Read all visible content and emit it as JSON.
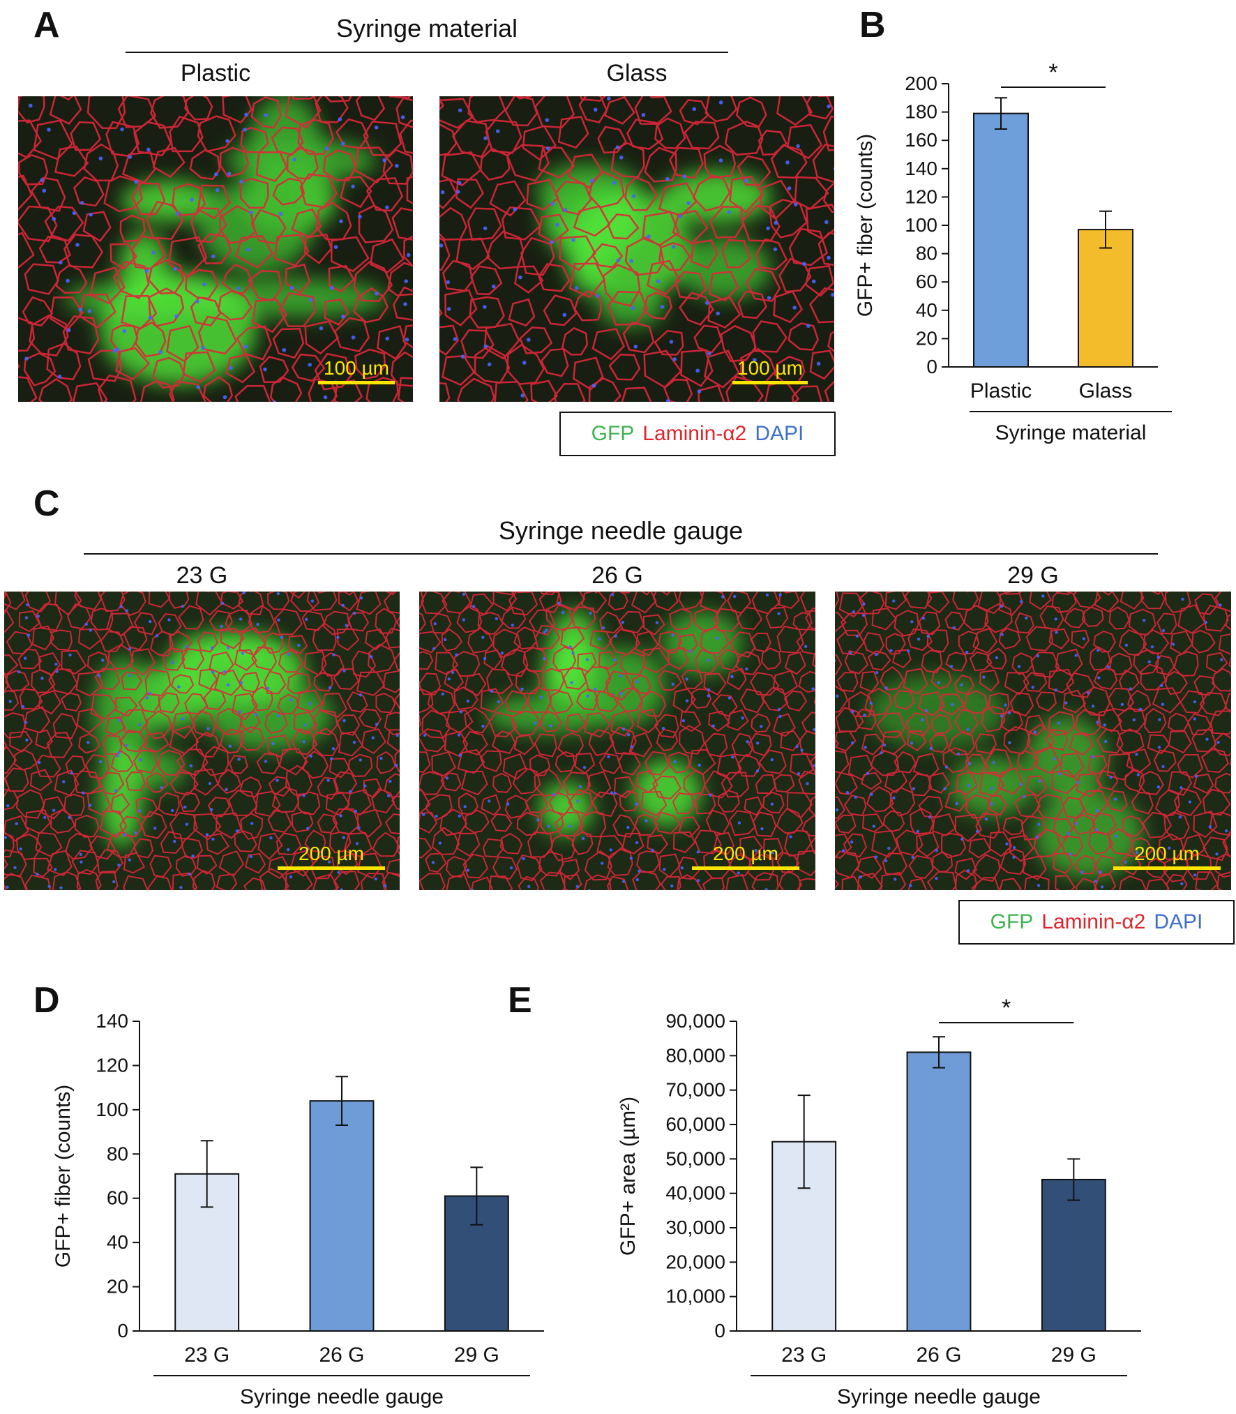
{
  "panels": {
    "A": {
      "letter": "A",
      "title": "Syringe material",
      "images": [
        {
          "label": "Plastic",
          "scalebar": "100 µm"
        },
        {
          "label": "Glass",
          "scalebar": "100 µm"
        }
      ],
      "legend": {
        "gfp": "GFP",
        "laminin": "Laminin-α2",
        "dapi": "DAPI"
      }
    },
    "B": {
      "letter": "B"
    },
    "C": {
      "letter": "C",
      "title": "Syringe needle gauge",
      "images": [
        {
          "label": "23 G",
          "scalebar": "200 µm"
        },
        {
          "label": "26 G",
          "scalebar": "200 µm"
        },
        {
          "label": "29 G",
          "scalebar": "200 µm"
        }
      ],
      "legend": {
        "gfp": "GFP",
        "laminin": "Laminin-α2",
        "dapi": "DAPI"
      }
    },
    "D": {
      "letter": "D"
    },
    "E": {
      "letter": "E"
    }
  },
  "colors": {
    "gfp_text": "#3fb34f",
    "laminin_text": "#e0242b",
    "dapi_text": "#3d6fc9",
    "scalebar": "#ffe600",
    "plastic_bar": "#6f9fdb",
    "glass_bar": "#f2bc2b",
    "g23_bar": "#dfe7f4",
    "g26_bar": "#6f9bd6",
    "g29_bar": "#324f78"
  },
  "chart_data": [
    {
      "panel": "B",
      "type": "bar",
      "categories": [
        "Plastic",
        "Glass"
      ],
      "values": [
        179,
        97
      ],
      "errors": [
        11,
        13
      ],
      "colors": [
        "#6f9fdb",
        "#f2bc2b"
      ],
      "ylabel": "GFP+ fiber (counts)",
      "xlabel": "Syringe material",
      "ylim": [
        0,
        200
      ],
      "yticks": [
        "0",
        "20",
        "40",
        "60",
        "80",
        "100",
        "120",
        "140",
        "160",
        "180",
        "200"
      ],
      "significance": {
        "from": 0,
        "to": 1,
        "label": "*"
      }
    },
    {
      "panel": "D",
      "type": "bar",
      "categories": [
        "23 G",
        "26 G",
        "29 G"
      ],
      "values": [
        71,
        104,
        61
      ],
      "errors": [
        15,
        11,
        13
      ],
      "colors": [
        "#dfe7f4",
        "#6f9bd6",
        "#324f78"
      ],
      "ylabel": "GFP+ fiber (counts)",
      "xlabel": "Syringe needle gauge",
      "ylim": [
        0,
        140
      ],
      "yticks": [
        "0",
        "20",
        "40",
        "60",
        "80",
        "100",
        "120",
        "140"
      ]
    },
    {
      "panel": "E",
      "type": "bar",
      "categories": [
        "23 G",
        "26 G",
        "29 G"
      ],
      "values": [
        55000,
        81000,
        44000
      ],
      "errors": [
        13500,
        4500,
        6000
      ],
      "colors": [
        "#dfe7f4",
        "#6f9bd6",
        "#324f78"
      ],
      "ylabel": "GFP+ area (µm²)",
      "xlabel": "Syringe needle gauge",
      "ylim": [
        0,
        90000
      ],
      "yticks": [
        "0",
        "10,000",
        "20,000",
        "30,000",
        "40,000",
        "50,000",
        "60,000",
        "70,000",
        "80,000",
        "90,000"
      ],
      "significance": {
        "from": 1,
        "to": 2,
        "label": "*"
      }
    }
  ]
}
